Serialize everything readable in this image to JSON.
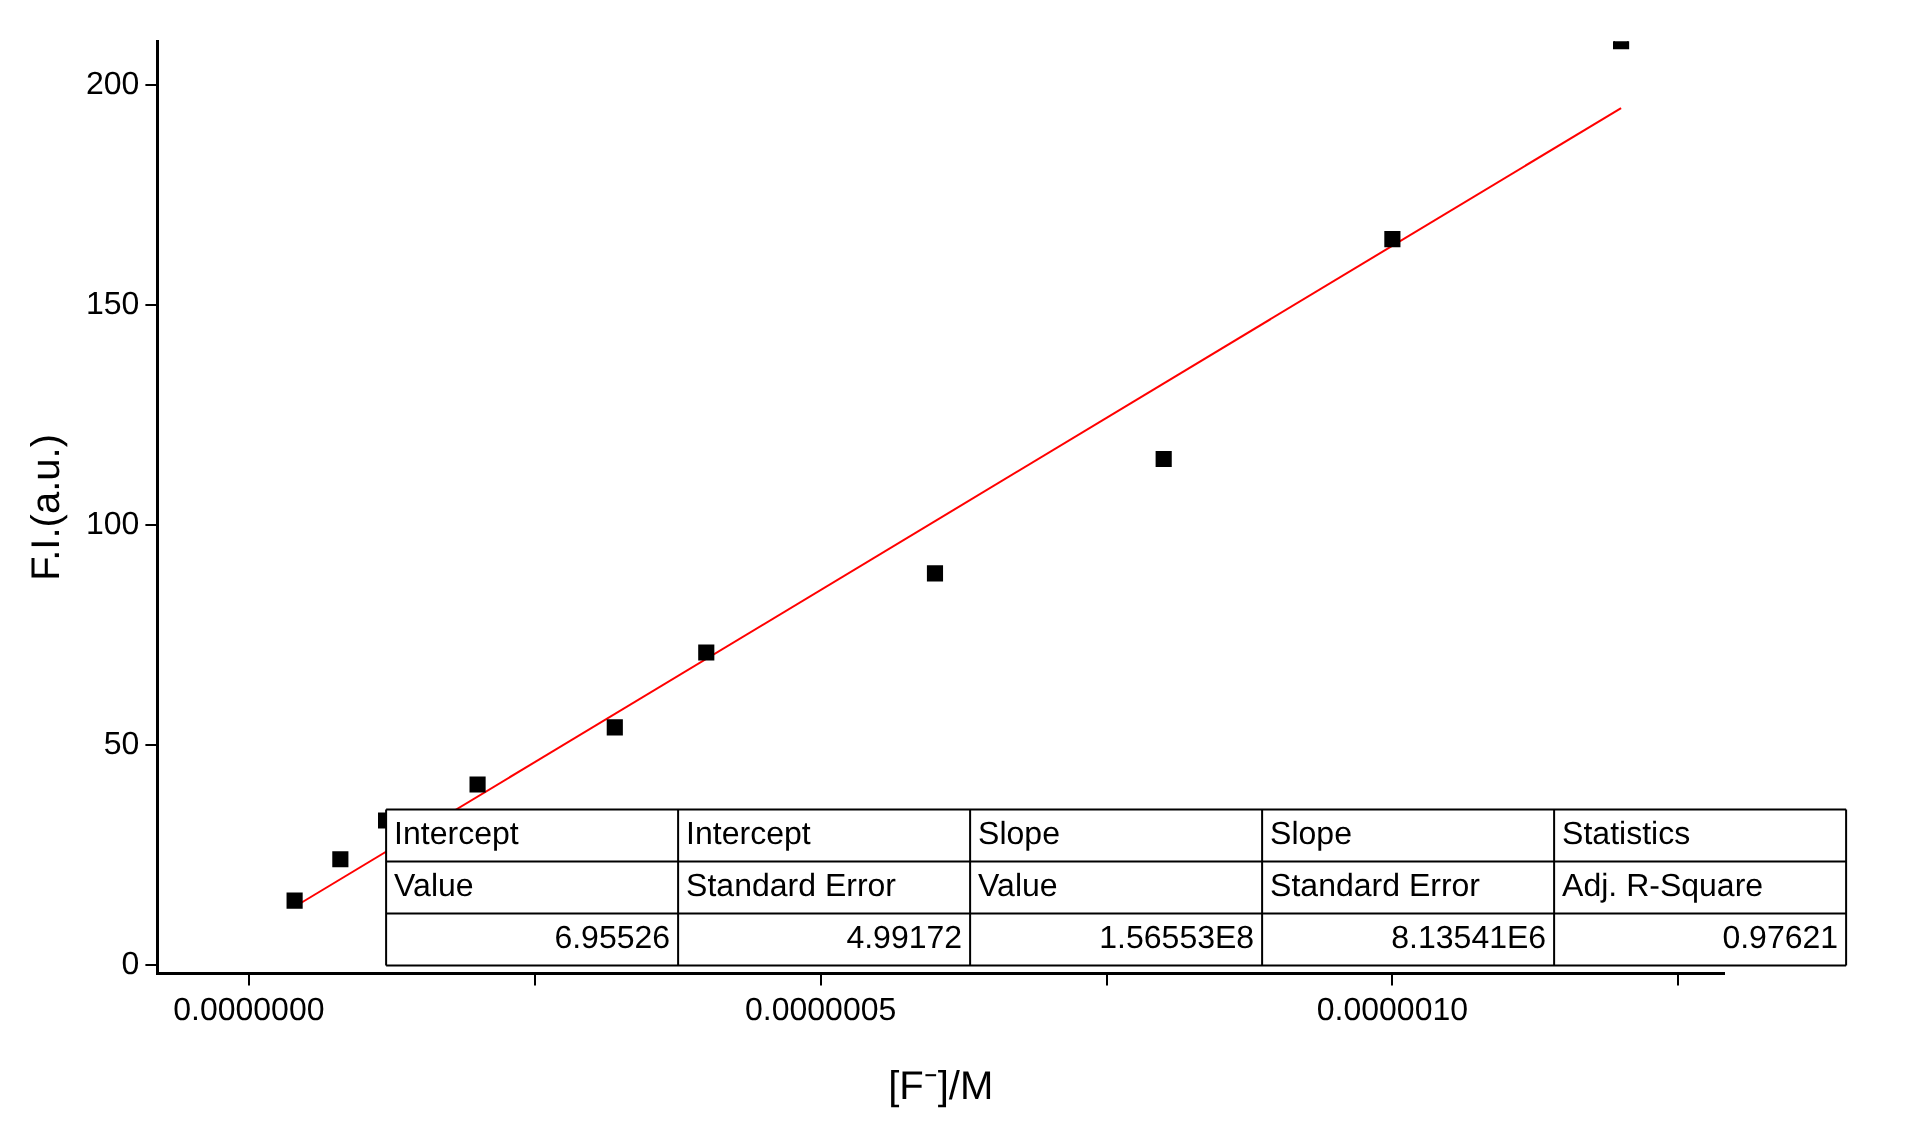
{
  "chart_data": {
    "type": "scatter",
    "xlabel": "[F⁻]/M",
    "ylabel": "F.I.(a.u.)",
    "series": [
      {
        "color": "#000000",
        "marker": "square",
        "x": [
          4e-08,
          8e-08,
          1.2e-07,
          2e-07,
          3.2e-07,
          4e-07,
          6e-07,
          8e-07,
          1e-06,
          1.2e-06
        ],
        "values": [
          14.6,
          24,
          32.8,
          41,
          54,
          71,
          89,
          115,
          165,
          210
        ]
      },
      {
        "type": "line",
        "color": "#ff0000",
        "marker": "none",
        "x": [
          4e-08,
          1.2e-06
        ],
        "values": [
          13.2,
          194.8
        ]
      }
    ],
    "xlim": [
      -8e-08,
      1.29e-06
    ],
    "ylim": [
      -2,
      210
    ],
    "xticks": [
      {
        "value": 0,
        "label": "0.0000000"
      },
      {
        "value": 2.5e-07,
        "label": null
      },
      {
        "value": 5e-07,
        "label": "0.0000005"
      },
      {
        "value": 7.5e-07,
        "label": null
      },
      {
        "value": 1e-06,
        "label": "0.0000010"
      },
      {
        "value": 1.25e-06,
        "label": null
      }
    ],
    "yticks": [
      0,
      50,
      100,
      150,
      200
    ],
    "legend": false,
    "annotations": [
      "Intercept",
      "Intercept",
      "Slope",
      "Slope",
      "Statistics",
      "Value",
      "Standard Error",
      "Value",
      "Standard Error",
      "Adj. R-Square",
      "6.95526",
      "4.99172",
      "1.56553E8",
      "8.13541E6",
      "0.97621"
    ]
  }
}
